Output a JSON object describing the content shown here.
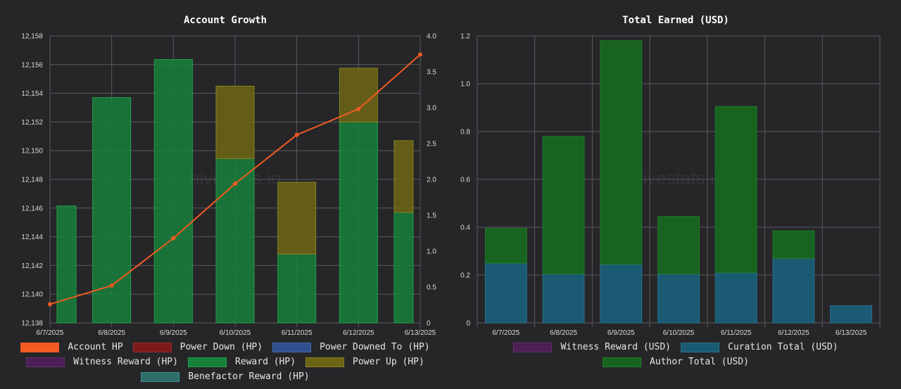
{
  "left_chart": {
    "title": "Account Growth",
    "watermark": "hivestats.io"
  },
  "right_chart": {
    "title": "Total Earned (USD)",
    "watermark": "hivestats.io"
  },
  "colors": {
    "background": "#262629",
    "grid": "#5a5a5e",
    "account_hp": "#f15a22",
    "power_down": "#7a1a1a",
    "power_downed_to": "#2f4f8f",
    "witness_reward": "#4b1f55",
    "reward": "#17803a",
    "power_up": "#6b6416",
    "benefactor_reward": "#2e6e6a",
    "curation": "#1a5a73",
    "author": "#17631f"
  },
  "chart_data": [
    {
      "type": "bar",
      "title": "Account Growth",
      "categories": [
        "6/7/2025",
        "6/8/2025",
        "6/9/2025",
        "6/10/2025",
        "6/11/2025",
        "6/12/2025",
        "6/13/2025"
      ],
      "y_left_ticks": [
        "12,138",
        "12,140",
        "12,142",
        "12,144",
        "12,146",
        "12,148",
        "12,150",
        "12,152",
        "12,154",
        "12,156",
        "12,158"
      ],
      "y_right_ticks": [
        "0",
        "0.5",
        "1.0",
        "1.5",
        "2.0",
        "2.5",
        "3.0",
        "3.5",
        "4.0"
      ],
      "ylim_left": [
        12138,
        12158
      ],
      "ylim_right": [
        0,
        4
      ],
      "grid": true,
      "legend_position": "bottom",
      "series": [
        {
          "name": "Account HP",
          "type": "line",
          "axis": "left",
          "x": [
            0,
            1,
            2,
            3,
            4,
            5,
            6
          ],
          "values": [
            12139.3,
            12140.6,
            12143.9,
            12147.7,
            12151.1,
            12152.9,
            12156.7
          ]
        },
        {
          "name": "Power Down (HP)",
          "type": "bar",
          "axis": "right",
          "values": [
            0,
            0,
            0,
            0,
            0,
            0,
            0
          ]
        },
        {
          "name": "Power Downed To (HP)",
          "type": "bar",
          "axis": "right",
          "values": [
            0,
            0,
            0,
            0,
            0,
            0,
            0
          ]
        },
        {
          "name": "Witness Reward (HP)",
          "type": "bar",
          "axis": "right",
          "values": [
            0,
            0,
            0,
            0,
            0,
            0,
            0
          ]
        },
        {
          "name": "Reward (HP)",
          "type": "bar",
          "axis": "right",
          "values": [
            1.63,
            3.14,
            3.67,
            2.29,
            0.96,
            2.8,
            1.54
          ]
        },
        {
          "name": "Power Up (HP)",
          "type": "bar",
          "axis": "right",
          "values": [
            0,
            0,
            0,
            1.01,
            1.0,
            0.75,
            1.0
          ]
        },
        {
          "name": "Benefactor Reward (HP)",
          "type": "bar",
          "axis": "right",
          "values": [
            0,
            0,
            0,
            0,
            0,
            0,
            0
          ]
        }
      ]
    },
    {
      "type": "bar",
      "title": "Total Earned (USD)",
      "categories": [
        "6/7/2025",
        "6/8/2025",
        "6/9/2025",
        "6/10/2025",
        "6/11/2025",
        "6/12/2025",
        "6/13/2025"
      ],
      "y_ticks": [
        "0",
        "0.2",
        "0.4",
        "0.6",
        "0.8",
        "1.0",
        "1.2"
      ],
      "ylim": [
        0,
        1.2
      ],
      "stacked": true,
      "grid": true,
      "legend_position": "bottom",
      "series": [
        {
          "name": "Witness Reward (USD)",
          "values": [
            0,
            0,
            0,
            0,
            0,
            0,
            0
          ]
        },
        {
          "name": "Curation Total (USD)",
          "values": [
            0.25,
            0.205,
            0.245,
            0.205,
            0.21,
            0.27,
            0.072
          ]
        },
        {
          "name": "Author Total (USD)",
          "values": [
            0.145,
            0.575,
            0.935,
            0.24,
            0.695,
            0.115,
            0
          ]
        }
      ]
    }
  ],
  "legends": {
    "left": [
      "Account HP",
      "Power Down (HP)",
      "Power Downed To (HP)",
      "Witness Reward (HP)",
      "Reward (HP)",
      "Power Up (HP)",
      "Benefactor Reward (HP)"
    ],
    "right": [
      "Witness Reward (USD)",
      "Curation Total (USD)",
      "Author Total (USD)"
    ]
  }
}
